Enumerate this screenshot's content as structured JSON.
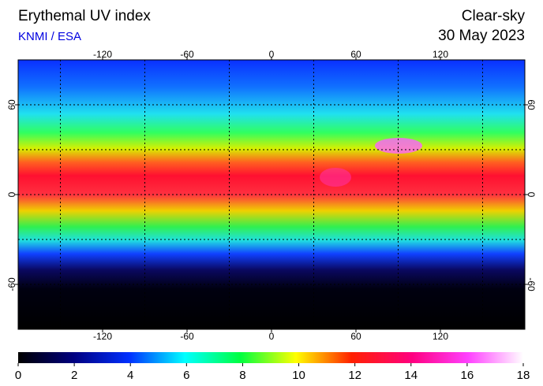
{
  "title": "Erythemal UV index",
  "source": "KNMI / ESA",
  "mode": "Clear-sky",
  "date": "30 May 2023",
  "map": {
    "lonlim": [
      -180,
      180
    ],
    "latlim": [
      -90,
      90
    ],
    "lon_ticks": [
      -120,
      -60,
      0,
      60,
      120
    ],
    "lat_ticks": [
      60,
      0,
      -60
    ]
  },
  "colorbar": {
    "lim": [
      0,
      18
    ],
    "ticks": [
      0,
      2,
      4,
      6,
      8,
      10,
      12,
      14,
      16,
      18
    ]
  }
}
